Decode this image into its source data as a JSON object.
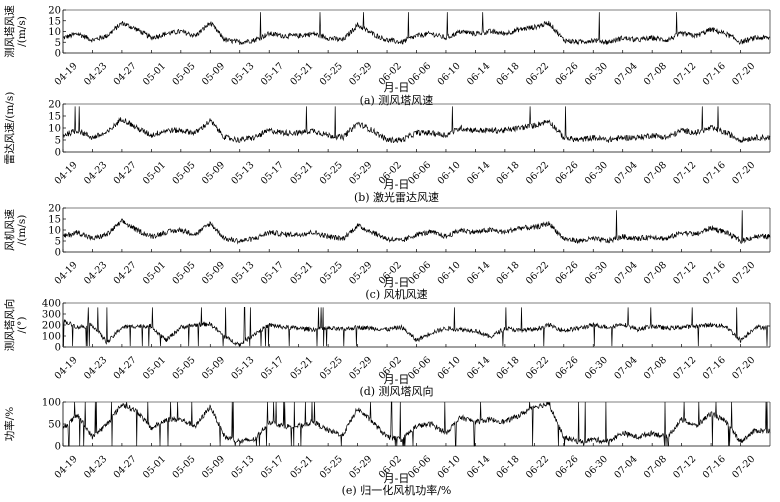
{
  "chart_data": [
    {
      "type": "line",
      "caption": "(a) 测风塔风速",
      "xlabel": "月-日",
      "ylabel": "测风塔风速\n/(m/s)",
      "ylim": [
        0,
        20
      ],
      "yticks": [
        0,
        5,
        10,
        15,
        20
      ],
      "xticks": [
        "04-19",
        "04-23",
        "04-27",
        "05-01",
        "05-05",
        "05-09",
        "05-13",
        "05-17",
        "05-21",
        "05-25",
        "05-29",
        "06-02",
        "06-06",
        "06-10",
        "06-14",
        "06-18",
        "06-22",
        "06-26",
        "06-30",
        "07-04",
        "07-08",
        "07-12",
        "07-16",
        "07-20"
      ],
      "x": [
        "04-19",
        "04-21",
        "04-23",
        "04-25",
        "04-27",
        "04-29",
        "05-01",
        "05-03",
        "05-05",
        "05-07",
        "05-09",
        "05-11",
        "05-13",
        "05-15",
        "05-17",
        "05-19",
        "05-21",
        "05-23",
        "05-25",
        "05-27",
        "05-29",
        "05-31",
        "06-02",
        "06-04",
        "06-06",
        "06-08",
        "06-10",
        "06-12",
        "06-14",
        "06-16",
        "06-18",
        "06-20",
        "06-22",
        "06-24",
        "06-26",
        "06-28",
        "06-30",
        "07-02",
        "07-04",
        "07-06",
        "07-08",
        "07-10",
        "07-12",
        "07-14",
        "07-16",
        "07-18",
        "07-20",
        "07-22"
      ],
      "series": [
        {
          "values": [
            7,
            9,
            6,
            8,
            14,
            11,
            7,
            9,
            10,
            8,
            14,
            6,
            5,
            6,
            9,
            8,
            8,
            9,
            7,
            6,
            13,
            9,
            6,
            5,
            8,
            9,
            7,
            10,
            9,
            10,
            9,
            11,
            12,
            14,
            6,
            5,
            6,
            5,
            7,
            6,
            7,
            6,
            9,
            8,
            11,
            9,
            5,
            7
          ]
        }
      ]
    },
    {
      "type": "line",
      "caption": "(b) 激光雷达风速",
      "xlabel": "月-日",
      "ylabel": "雷达风速/(m/s)",
      "ylim": [
        0,
        20
      ],
      "yticks": [
        0,
        5,
        10,
        15,
        20
      ],
      "xticks": [
        "04-19",
        "04-23",
        "04-27",
        "05-01",
        "05-05",
        "05-09",
        "05-13",
        "05-17",
        "05-21",
        "05-25",
        "05-29",
        "06-02",
        "06-06",
        "06-10",
        "06-14",
        "06-18",
        "06-22",
        "06-26",
        "06-30",
        "07-04",
        "07-08",
        "07-12",
        "07-16",
        "07-20"
      ],
      "x": [
        "04-19",
        "04-21",
        "04-23",
        "04-25",
        "04-27",
        "04-29",
        "05-01",
        "05-03",
        "05-05",
        "05-07",
        "05-09",
        "05-11",
        "05-13",
        "05-15",
        "05-17",
        "05-19",
        "05-21",
        "05-23",
        "05-25",
        "05-27",
        "05-29",
        "05-31",
        "06-02",
        "06-04",
        "06-06",
        "06-08",
        "06-10",
        "06-12",
        "06-14",
        "06-16",
        "06-18",
        "06-20",
        "06-22",
        "06-24",
        "06-26",
        "06-28",
        "06-30",
        "07-02",
        "07-04",
        "07-06",
        "07-08",
        "07-10",
        "07-12",
        "07-14",
        "07-16",
        "07-18",
        "07-20",
        "07-22"
      ],
      "series": [
        {
          "values": [
            7,
            9,
            6,
            8,
            14,
            10,
            7,
            9,
            9,
            8,
            13,
            6,
            5,
            6,
            9,
            8,
            8,
            9,
            7,
            6,
            12,
            9,
            5,
            5,
            8,
            8,
            7,
            10,
            9,
            9,
            9,
            10,
            11,
            13,
            6,
            5,
            6,
            5,
            6,
            6,
            7,
            6,
            9,
            8,
            10,
            8,
            5,
            6
          ]
        }
      ]
    },
    {
      "type": "line",
      "caption": "(c) 风机风速",
      "xlabel": "月-日",
      "ylabel": "风机风速\n/(m/s)",
      "ylim": [
        0,
        20
      ],
      "yticks": [
        0,
        5,
        10,
        15,
        20
      ],
      "xticks": [
        "04-19",
        "04-23",
        "04-27",
        "05-01",
        "05-05",
        "05-09",
        "05-13",
        "05-17",
        "05-21",
        "05-25",
        "05-29",
        "06-02",
        "06-06",
        "06-10",
        "06-14",
        "06-18",
        "06-22",
        "06-26",
        "06-30",
        "07-04",
        "07-08",
        "07-12",
        "07-16",
        "07-20"
      ],
      "x": [
        "04-19",
        "04-21",
        "04-23",
        "04-25",
        "04-27",
        "04-29",
        "05-01",
        "05-03",
        "05-05",
        "05-07",
        "05-09",
        "05-11",
        "05-13",
        "05-15",
        "05-17",
        "05-19",
        "05-21",
        "05-23",
        "05-25",
        "05-27",
        "05-29",
        "05-31",
        "06-02",
        "06-04",
        "06-06",
        "06-08",
        "06-10",
        "06-12",
        "06-14",
        "06-16",
        "06-18",
        "06-20",
        "06-22",
        "06-24",
        "06-26",
        "06-28",
        "06-30",
        "07-02",
        "07-04",
        "07-06",
        "07-08",
        "07-10",
        "07-12",
        "07-14",
        "07-16",
        "07-18",
        "07-20",
        "07-22"
      ],
      "series": [
        {
          "values": [
            7,
            9,
            6,
            8,
            14,
            10,
            7,
            9,
            10,
            8,
            13,
            6,
            5,
            6,
            9,
            8,
            8,
            9,
            7,
            6,
            12,
            9,
            6,
            5,
            8,
            9,
            7,
            10,
            9,
            10,
            9,
            11,
            11,
            13,
            6,
            5,
            6,
            5,
            7,
            6,
            7,
            6,
            9,
            8,
            11,
            9,
            5,
            7
          ]
        }
      ]
    },
    {
      "type": "line",
      "caption": "(d) 测风塔风向",
      "xlabel": "月-日",
      "ylabel": "测风塔风向\n/(°)",
      "ylim": [
        0,
        400
      ],
      "yticks": [
        0,
        100,
        200,
        300,
        400
      ],
      "xticks": [
        "04-19",
        "04-23",
        "04-27",
        "05-01",
        "05-05",
        "05-09",
        "05-13",
        "05-17",
        "05-21",
        "05-25",
        "05-29",
        "06-02",
        "06-06",
        "06-10",
        "06-14",
        "06-18",
        "06-22",
        "06-26",
        "06-30",
        "07-04",
        "07-08",
        "07-12",
        "07-16",
        "07-20"
      ],
      "x": [
        "04-19",
        "04-21",
        "04-23",
        "04-25",
        "04-27",
        "04-29",
        "05-01",
        "05-03",
        "05-05",
        "05-07",
        "05-09",
        "05-11",
        "05-13",
        "05-15",
        "05-17",
        "05-19",
        "05-21",
        "05-23",
        "05-25",
        "05-27",
        "05-29",
        "05-31",
        "06-02",
        "06-04",
        "06-06",
        "06-08",
        "06-10",
        "06-12",
        "06-14",
        "06-16",
        "06-18",
        "06-20",
        "06-22",
        "06-24",
        "06-26",
        "06-28",
        "06-30",
        "07-02",
        "07-04",
        "07-06",
        "07-08",
        "07-10",
        "07-12",
        "07-14",
        "07-16",
        "07-18",
        "07-20",
        "07-22"
      ],
      "series": [
        {
          "values": [
            240,
            180,
            200,
            40,
            180,
            190,
            190,
            60,
            180,
            200,
            210,
            90,
            20,
            120,
            200,
            180,
            170,
            160,
            170,
            160,
            180,
            170,
            160,
            180,
            60,
            130,
            170,
            160,
            150,
            90,
            170,
            150,
            160,
            200,
            150,
            170,
            200,
            180,
            210,
            160,
            190,
            170,
            180,
            190,
            200,
            190,
            60,
            180
          ]
        }
      ]
    },
    {
      "type": "line",
      "caption": "(e) 归一化风机功率/%",
      "xlabel": "月-日",
      "ylabel": "功率/%",
      "ylim": [
        0,
        100
      ],
      "yticks": [
        0,
        50,
        100
      ],
      "xticks": [
        "04-19",
        "04-23",
        "04-27",
        "05-01",
        "05-05",
        "05-09",
        "05-13",
        "05-17",
        "05-21",
        "05-25",
        "05-29",
        "06-02",
        "06-06",
        "06-10",
        "06-14",
        "06-18",
        "06-22",
        "06-26",
        "06-30",
        "07-04",
        "07-08",
        "07-12",
        "07-16",
        "07-20"
      ],
      "x": [
        "04-19",
        "04-21",
        "04-23",
        "04-25",
        "04-27",
        "04-29",
        "05-01",
        "05-03",
        "05-05",
        "05-07",
        "05-09",
        "05-11",
        "05-13",
        "05-15",
        "05-17",
        "05-19",
        "05-21",
        "05-23",
        "05-25",
        "05-27",
        "05-29",
        "05-31",
        "06-02",
        "06-04",
        "06-06",
        "06-08",
        "06-10",
        "06-12",
        "06-14",
        "06-16",
        "06-18",
        "06-20",
        "06-22",
        "06-24",
        "06-26",
        "06-28",
        "06-30",
        "07-02",
        "07-04",
        "07-06",
        "07-08",
        "07-10",
        "07-12",
        "07-14",
        "07-16",
        "07-18",
        "07-20",
        "07-22"
      ],
      "series": [
        {
          "values": [
            40,
            70,
            20,
            50,
            95,
            80,
            40,
            60,
            60,
            45,
            90,
            20,
            10,
            15,
            55,
            45,
            45,
            55,
            35,
            25,
            85,
            55,
            20,
            15,
            45,
            50,
            30,
            65,
            55,
            60,
            55,
            70,
            90,
            95,
            20,
            10,
            15,
            10,
            30,
            20,
            30,
            20,
            60,
            45,
            75,
            55,
            10,
            35
          ]
        }
      ]
    }
  ]
}
